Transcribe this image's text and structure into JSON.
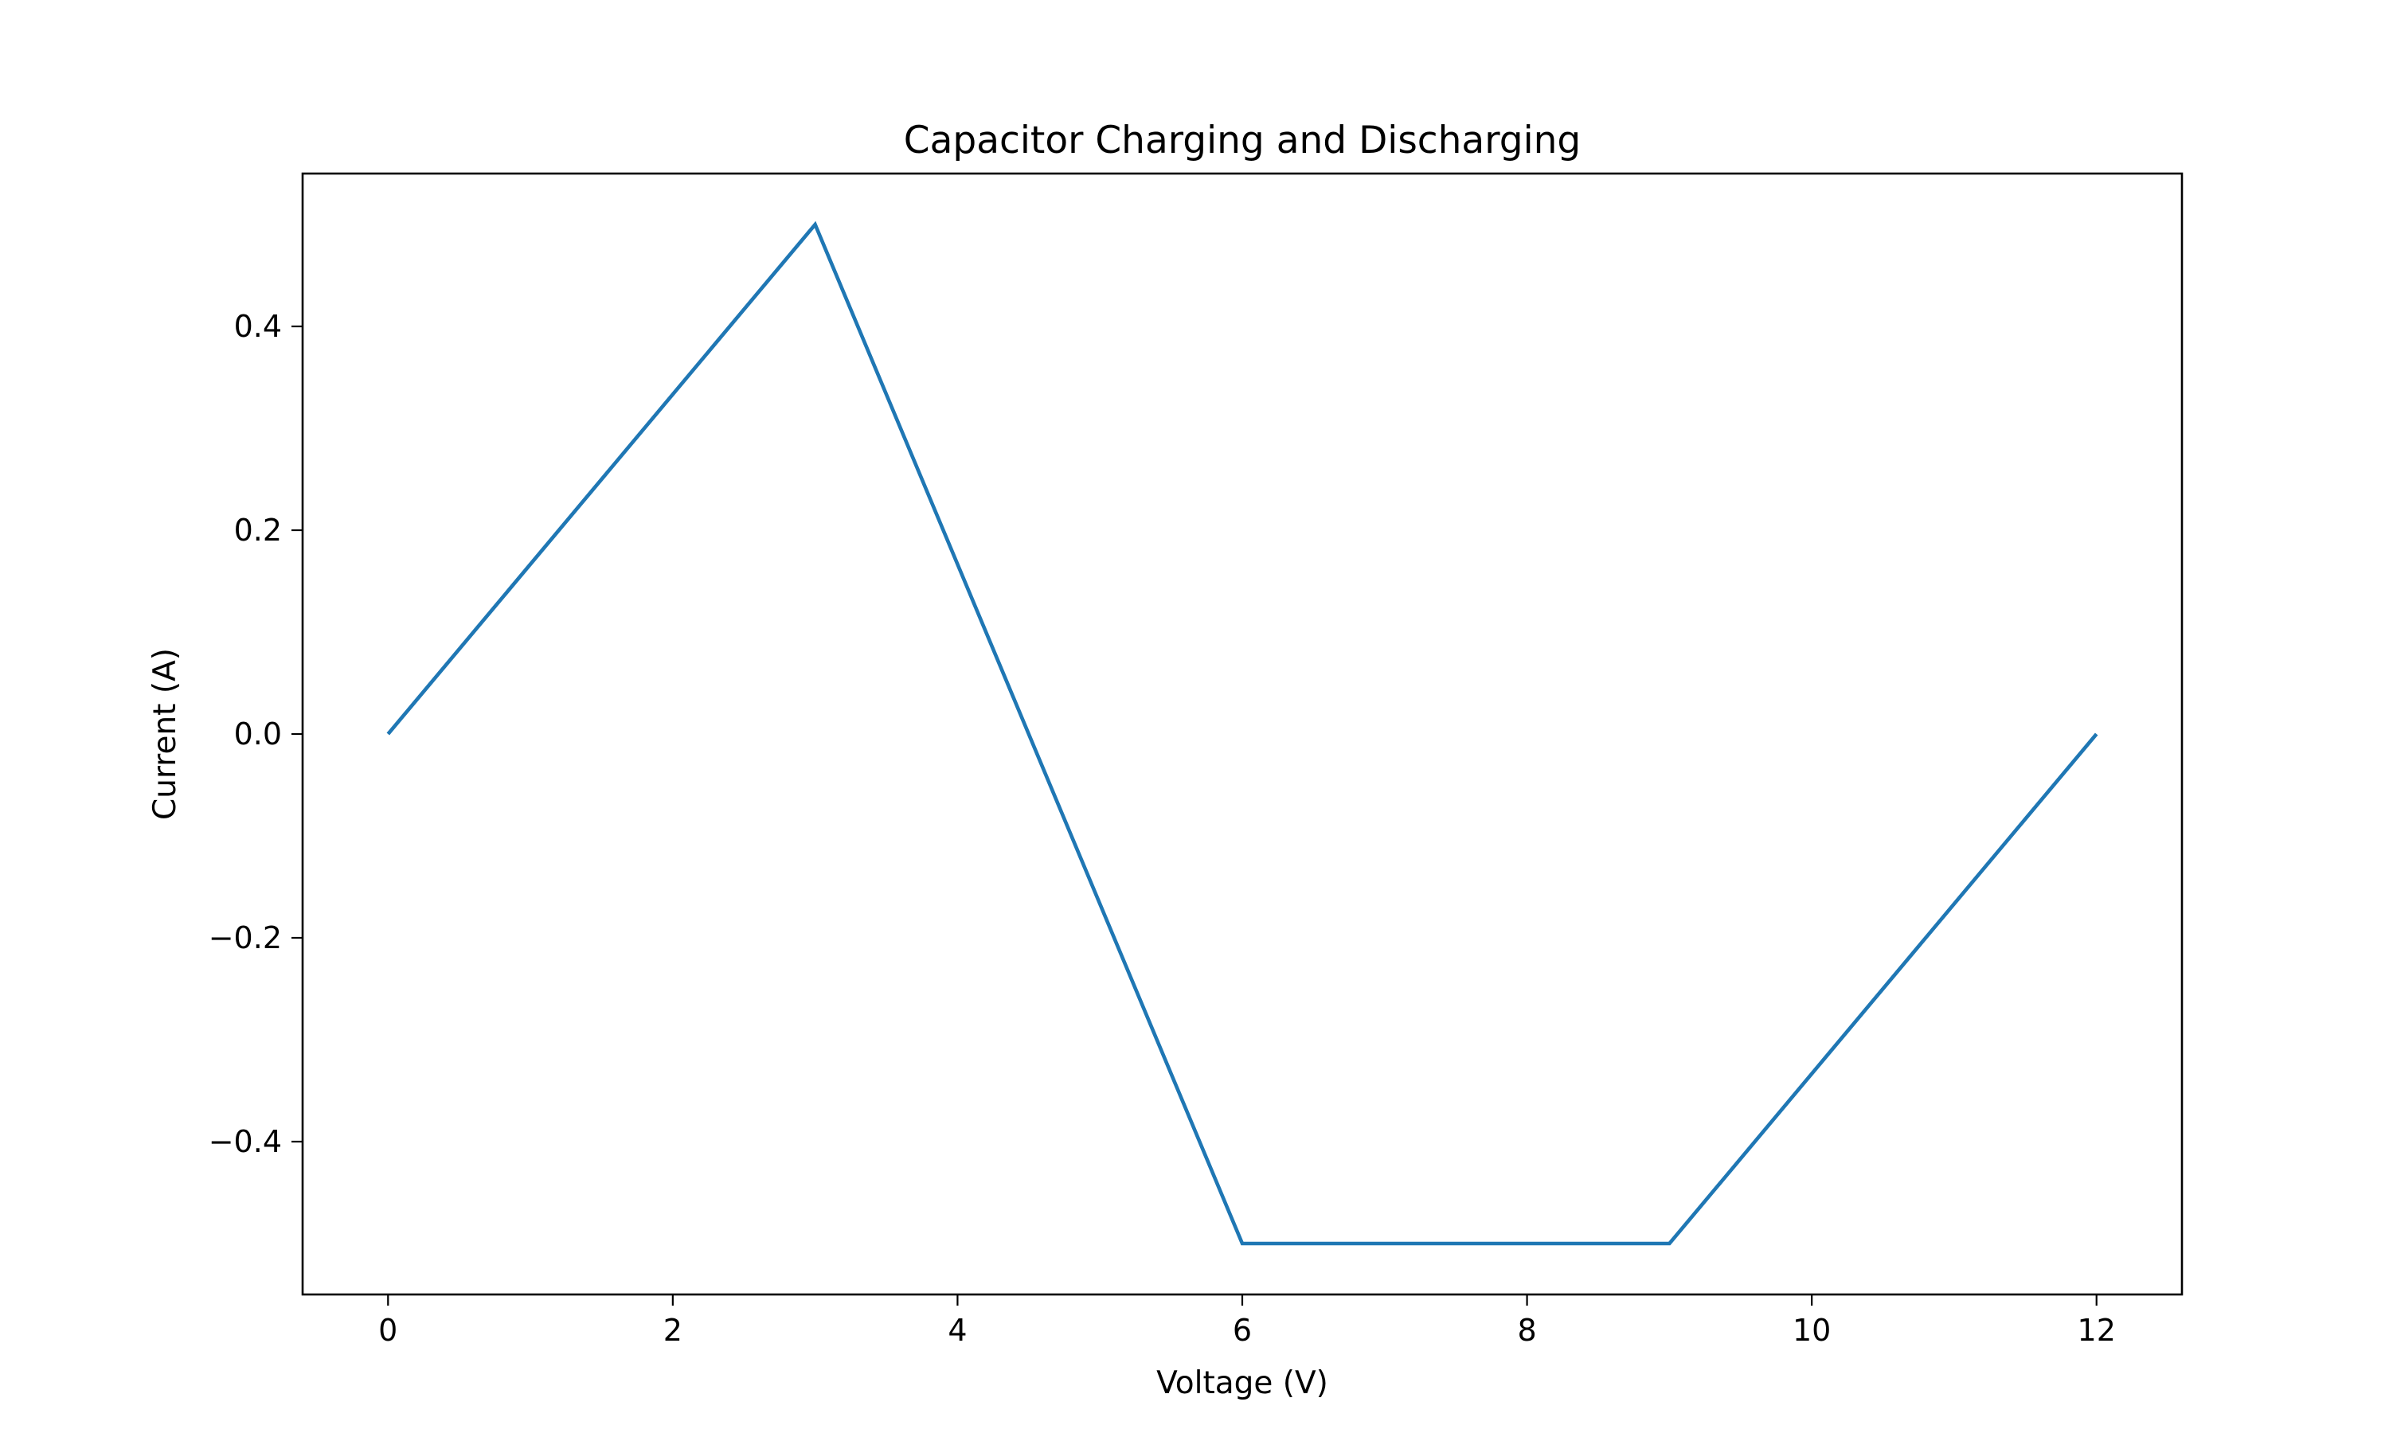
{
  "chart_data": {
    "type": "line",
    "title": "Capacitor Charging and Discharging",
    "xlabel": "Voltage (V)",
    "ylabel": "Current (A)",
    "xlim": [
      -0.6,
      12.6
    ],
    "ylim": [
      -0.55,
      0.55
    ],
    "xticks": [
      0,
      2,
      4,
      6,
      8,
      10,
      12
    ],
    "xtick_labels": [
      "0",
      "2",
      "4",
      "6",
      "8",
      "10",
      "12"
    ],
    "yticks": [
      -0.4,
      -0.2,
      0.0,
      0.2,
      0.4
    ],
    "ytick_labels": [
      "−0.4",
      "−0.2",
      "0.0",
      "0.2",
      "0.4"
    ],
    "grid": false,
    "legend": "none",
    "series": [
      {
        "color": "#1f77b4",
        "x": [
          0,
          3,
          6,
          9,
          12
        ],
        "y": [
          0.0,
          0.5,
          -0.5,
          -0.5,
          0.0
        ]
      }
    ]
  }
}
